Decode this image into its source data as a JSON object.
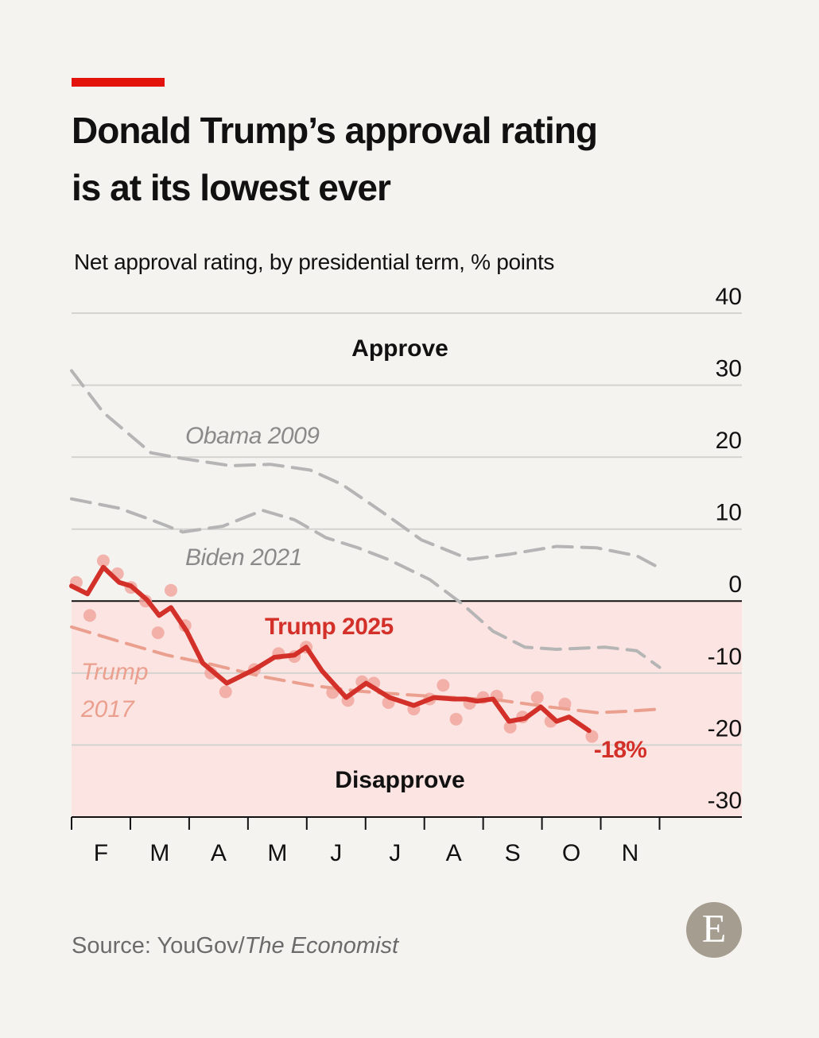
{
  "header": {
    "title": "Donald Trump’s approval rating is at its lowest ever",
    "accent_color": "#e3120b"
  },
  "chart_data": {
    "type": "line",
    "subtitle": "Net approval rating, by presidential term, % points",
    "annotations": [
      "Approve",
      "Disapprove"
    ],
    "x_categories": [
      "F",
      "M",
      "A",
      "M",
      "J",
      "J",
      "A",
      "S",
      "O",
      "N"
    ],
    "xlim": [
      0,
      11.4
    ],
    "xticks": [
      0,
      1,
      2,
      3,
      4,
      5,
      6,
      7,
      8,
      9,
      10
    ],
    "ylim": [
      -30,
      40
    ],
    "yticks": [
      40,
      30,
      20,
      10,
      0,
      -10,
      -20,
      -30
    ],
    "grid": true,
    "negative_shading": "#fbe4e1",
    "series": [
      {
        "name": "Obama 2009",
        "color": "#b5b5b5",
        "dashed": true,
        "x": [
          0,
          0.54,
          1.35,
          1.89,
          2.71,
          3.38,
          4.06,
          4.6,
          5.28,
          5.95,
          6.77,
          7.44,
          8.25,
          8.93,
          9.61,
          10
        ],
        "values": [
          32.0,
          26.2,
          20.6,
          19.8,
          18.8,
          19.0,
          18.2,
          16.2,
          12.4,
          8.5,
          5.8,
          6.5,
          7.6,
          7.4,
          6.3,
          4.6
        ]
      },
      {
        "name": "Biden 2021",
        "color": "#b5b5b5",
        "dashed": true,
        "x": [
          0,
          0.81,
          1.35,
          1.89,
          2.57,
          3.25,
          3.79,
          4.33,
          4.87,
          5.41,
          6.09,
          6.63,
          7.17,
          7.71,
          8.25,
          9.07,
          9.61,
          10
        ],
        "values": [
          14.2,
          12.9,
          11.3,
          9.6,
          10.4,
          12.6,
          11.3,
          8.8,
          7.4,
          5.7,
          3.0,
          -0.3,
          -4.2,
          -6.4,
          -6.7,
          -6.4,
          -6.9,
          -9.2
        ]
      },
      {
        "name": "Trump 2017",
        "color": "#eba08f",
        "dashed": true,
        "x": [
          0,
          0.81,
          1.62,
          2.44,
          3.25,
          4.06,
          4.87,
          5.68,
          6.5,
          7.31,
          8.12,
          8.93,
          9.47,
          10
        ],
        "values": [
          -3.6,
          -5.6,
          -7.5,
          -8.9,
          -10.5,
          -11.7,
          -12.5,
          -13.0,
          -13.4,
          -13.8,
          -14.7,
          -15.5,
          -15.3,
          -15.0
        ]
      },
      {
        "name": "Trump 2025",
        "color": "#d3302a",
        "dashed": false,
        "x": [
          0,
          0.27,
          0.54,
          0.81,
          1.01,
          1.28,
          1.49,
          1.69,
          1.96,
          2.23,
          2.64,
          3.11,
          3.45,
          3.79,
          3.99,
          4.26,
          4.67,
          5.01,
          5.41,
          5.82,
          6.16,
          6.5,
          6.7,
          6.9,
          7.17,
          7.44,
          7.71,
          7.98,
          8.25,
          8.46,
          8.8
        ],
        "values": [
          2.1,
          1.0,
          4.7,
          2.6,
          2.1,
          0.2,
          -2.0,
          -0.9,
          -4.2,
          -8.6,
          -11.4,
          -9.5,
          -7.8,
          -7.5,
          -6.4,
          -9.7,
          -13.4,
          -11.4,
          -13.4,
          -14.5,
          -13.4,
          -13.6,
          -13.6,
          -13.9,
          -13.6,
          -16.7,
          -16.3,
          -14.7,
          -16.7,
          -16.1,
          -18
        ],
        "value_labels": [
          null,
          null,
          null,
          null,
          null,
          null,
          null,
          null,
          null,
          null,
          null,
          null,
          null,
          null,
          null,
          null,
          null,
          null,
          null,
          null,
          null,
          null,
          null,
          null,
          null,
          null,
          null,
          null,
          null,
          null,
          "-18%"
        ]
      },
      {
        "type": "scatter",
        "color": "#f0a79f",
        "x": [
          0.08,
          0.31,
          0.54,
          0.78,
          1.01,
          1.26,
          1.47,
          1.69,
          1.93,
          2.37,
          2.62,
          3.11,
          3.52,
          3.79,
          3.99,
          4.44,
          4.7,
          4.94,
          5.14,
          5.39,
          5.82,
          6.09,
          6.32,
          6.54,
          6.77,
          7.0,
          7.23,
          7.46,
          7.67,
          7.92,
          8.15,
          8.39,
          8.85
        ],
        "values": [
          2.6,
          -2.0,
          5.6,
          3.8,
          1.9,
          0,
          -4.4,
          1.5,
          -3.4,
          -10.0,
          -12.6,
          -9.5,
          -7.3,
          -7.7,
          -6.4,
          -12.7,
          -13.8,
          -11.2,
          -11.4,
          -14.1,
          -15.0,
          -13.6,
          -11.7,
          -16.4,
          -14.2,
          -13.4,
          -13.2,
          -17.5,
          -16.1,
          -13.4,
          -16.7,
          -14.3,
          -18.8
        ]
      }
    ]
  },
  "footer": {
    "source": "Source: YouGov/",
    "source_publication": "The Economist",
    "logo": "E"
  }
}
